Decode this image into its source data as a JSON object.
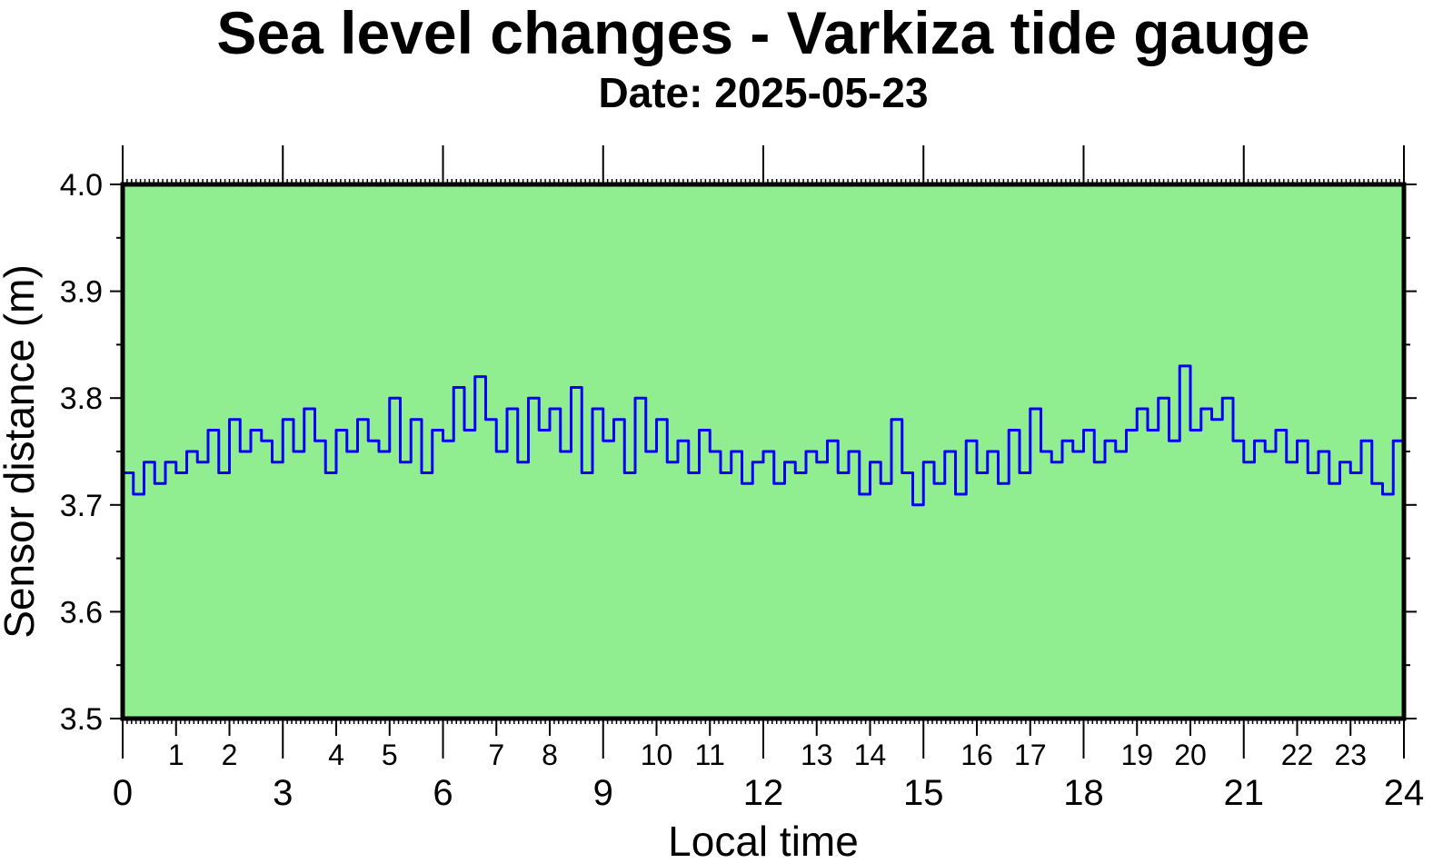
{
  "chart_data": {
    "type": "line",
    "title": "Sea level changes - Varkiza tide gauge",
    "subtitle": "Date: 2025-05-23",
    "xlabel": "Local time",
    "ylabel": "Sensor distance (m)",
    "xlim": [
      0,
      24
    ],
    "ylim": [
      3.5,
      4.0
    ],
    "x_major_ticks": [
      "0",
      "3",
      "6",
      "9",
      "12",
      "15",
      "18",
      "21",
      "24"
    ],
    "x_minor_ticks": [
      "1",
      "2",
      "4",
      "5",
      "7",
      "8",
      "10",
      "11",
      "13",
      "14",
      "16",
      "17",
      "19",
      "20",
      "22",
      "23"
    ],
    "y_ticks": [
      "3.5",
      "3.6",
      "3.7",
      "3.8",
      "3.9",
      "4.0"
    ],
    "plot_background": "#90ee90",
    "line_color": "#0000ff",
    "grid": false,
    "series": [
      {
        "x": [
          0,
          0.2,
          0.4,
          0.6,
          0.8,
          1,
          1.2,
          1.4,
          1.6,
          1.8,
          2,
          2.2,
          2.4,
          2.6,
          2.8,
          3,
          3.2,
          3.4,
          3.6,
          3.8,
          4,
          4.2,
          4.4,
          4.6,
          4.8,
          5,
          5.2,
          5.4,
          5.6,
          5.8,
          6,
          6.2,
          6.4,
          6.6,
          6.8,
          7,
          7.2,
          7.4,
          7.6,
          7.8,
          8,
          8.2,
          8.4,
          8.6,
          8.8,
          9,
          9.2,
          9.4,
          9.6,
          9.8,
          10,
          10.2,
          10.4,
          10.6,
          10.8,
          11,
          11.2,
          11.4,
          11.6,
          11.8,
          12,
          12.2,
          12.4,
          12.6,
          12.8,
          13,
          13.2,
          13.4,
          13.6,
          13.8,
          14,
          14.2,
          14.4,
          14.6,
          14.8,
          15,
          15.2,
          15.4,
          15.6,
          15.8,
          16,
          16.2,
          16.4,
          16.6,
          16.8,
          17,
          17.2,
          17.4,
          17.6,
          17.8,
          18,
          18.2,
          18.4,
          18.6,
          18.8,
          19,
          19.2,
          19.4,
          19.6,
          19.8,
          20,
          20.2,
          20.4,
          20.6,
          20.8,
          21,
          21.2,
          21.4,
          21.6,
          21.8,
          22,
          22.2,
          22.4,
          22.6,
          22.8,
          23,
          23.2,
          23.4,
          23.6,
          23.8,
          24
        ],
        "values": [
          3.73,
          3.71,
          3.74,
          3.72,
          3.74,
          3.73,
          3.75,
          3.74,
          3.77,
          3.73,
          3.78,
          3.75,
          3.77,
          3.76,
          3.74,
          3.78,
          3.75,
          3.79,
          3.76,
          3.73,
          3.77,
          3.75,
          3.78,
          3.76,
          3.75,
          3.8,
          3.74,
          3.78,
          3.73,
          3.77,
          3.76,
          3.81,
          3.77,
          3.82,
          3.78,
          3.75,
          3.79,
          3.74,
          3.8,
          3.77,
          3.79,
          3.75,
          3.81,
          3.73,
          3.79,
          3.76,
          3.78,
          3.73,
          3.8,
          3.75,
          3.78,
          3.74,
          3.76,
          3.73,
          3.77,
          3.75,
          3.73,
          3.75,
          3.72,
          3.74,
          3.75,
          3.72,
          3.74,
          3.73,
          3.75,
          3.74,
          3.76,
          3.73,
          3.75,
          3.71,
          3.74,
          3.72,
          3.78,
          3.73,
          3.7,
          3.74,
          3.72,
          3.75,
          3.71,
          3.76,
          3.73,
          3.75,
          3.72,
          3.77,
          3.73,
          3.79,
          3.75,
          3.74,
          3.76,
          3.75,
          3.77,
          3.74,
          3.76,
          3.75,
          3.77,
          3.79,
          3.77,
          3.8,
          3.76,
          3.83,
          3.77,
          3.79,
          3.78,
          3.8,
          3.76,
          3.74,
          3.76,
          3.75,
          3.77,
          3.74,
          3.76,
          3.73,
          3.75,
          3.72,
          3.74,
          3.73,
          3.76,
          3.72,
          3.71,
          3.76,
          3.73
        ]
      }
    ]
  }
}
